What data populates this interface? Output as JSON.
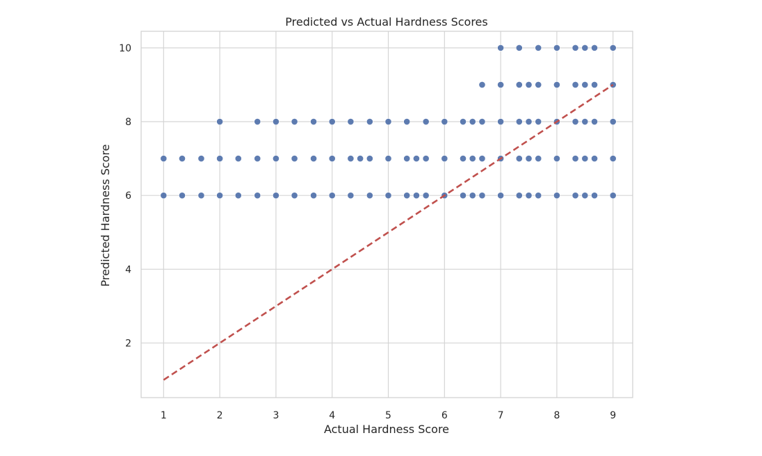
{
  "chart_data": {
    "type": "scatter",
    "title": "Predicted vs Actual Hardness Scores",
    "xlabel": "Actual Hardness Score",
    "ylabel": "Predicted Hardness Score",
    "xlim": [
      0.6,
      9.35
    ],
    "ylim": [
      0.52,
      10.45
    ],
    "x_ticks": [
      1,
      2,
      3,
      4,
      5,
      6,
      7,
      8,
      9
    ],
    "y_ticks": [
      2,
      4,
      6,
      8,
      10
    ],
    "grid": true,
    "point_color": "#4c6ea8",
    "reference_line": {
      "style": "dashed",
      "color": "#c0504d",
      "from": [
        1,
        1
      ],
      "to": [
        9,
        9
      ]
    },
    "points": [
      [
        1,
        6
      ],
      [
        1,
        7
      ],
      [
        1.33,
        6
      ],
      [
        1.33,
        7
      ],
      [
        1.67,
        6
      ],
      [
        1.67,
        7
      ],
      [
        2,
        6
      ],
      [
        2,
        7
      ],
      [
        2,
        8
      ],
      [
        2.33,
        6
      ],
      [
        2.33,
        7
      ],
      [
        2.67,
        6
      ],
      [
        2.67,
        7
      ],
      [
        2.67,
        8
      ],
      [
        3,
        6
      ],
      [
        3,
        7
      ],
      [
        3,
        8
      ],
      [
        3.33,
        6
      ],
      [
        3.33,
        7
      ],
      [
        3.33,
        8
      ],
      [
        3.67,
        6
      ],
      [
        3.67,
        7
      ],
      [
        3.67,
        8
      ],
      [
        4,
        6
      ],
      [
        4,
        7
      ],
      [
        4,
        8
      ],
      [
        4.33,
        6
      ],
      [
        4.33,
        7
      ],
      [
        4.33,
        8
      ],
      [
        4.5,
        7
      ],
      [
        4.67,
        6
      ],
      [
        4.67,
        7
      ],
      [
        4.67,
        8
      ],
      [
        5,
        6
      ],
      [
        5,
        7
      ],
      [
        5,
        8
      ],
      [
        5.33,
        6
      ],
      [
        5.33,
        7
      ],
      [
        5.33,
        8
      ],
      [
        5.5,
        6
      ],
      [
        5.5,
        7
      ],
      [
        5.67,
        6
      ],
      [
        5.67,
        7
      ],
      [
        5.67,
        8
      ],
      [
        6,
        6
      ],
      [
        6,
        7
      ],
      [
        6,
        8
      ],
      [
        6.33,
        6
      ],
      [
        6.33,
        7
      ],
      [
        6.33,
        8
      ],
      [
        6.5,
        6
      ],
      [
        6.5,
        7
      ],
      [
        6.5,
        8
      ],
      [
        6.67,
        6
      ],
      [
        6.67,
        7
      ],
      [
        6.67,
        8
      ],
      [
        6.67,
        9
      ],
      [
        7,
        6
      ],
      [
        7,
        7
      ],
      [
        7,
        8
      ],
      [
        7,
        9
      ],
      [
        7,
        10
      ],
      [
        7.33,
        6
      ],
      [
        7.33,
        7
      ],
      [
        7.33,
        8
      ],
      [
        7.33,
        9
      ],
      [
        7.33,
        10
      ],
      [
        7.5,
        6
      ],
      [
        7.5,
        7
      ],
      [
        7.5,
        8
      ],
      [
        7.5,
        9
      ],
      [
        7.67,
        6
      ],
      [
        7.67,
        7
      ],
      [
        7.67,
        8
      ],
      [
        7.67,
        9
      ],
      [
        7.67,
        10
      ],
      [
        8,
        6
      ],
      [
        8,
        7
      ],
      [
        8,
        8
      ],
      [
        8,
        9
      ],
      [
        8,
        10
      ],
      [
        8.33,
        6
      ],
      [
        8.33,
        7
      ],
      [
        8.33,
        8
      ],
      [
        8.33,
        9
      ],
      [
        8.33,
        10
      ],
      [
        8.5,
        6
      ],
      [
        8.5,
        7
      ],
      [
        8.5,
        8
      ],
      [
        8.5,
        9
      ],
      [
        8.5,
        10
      ],
      [
        8.67,
        6
      ],
      [
        8.67,
        7
      ],
      [
        8.67,
        8
      ],
      [
        8.67,
        9
      ],
      [
        8.67,
        10
      ],
      [
        9,
        6
      ],
      [
        9,
        7
      ],
      [
        9,
        8
      ],
      [
        9,
        9
      ],
      [
        9,
        10
      ]
    ]
  }
}
